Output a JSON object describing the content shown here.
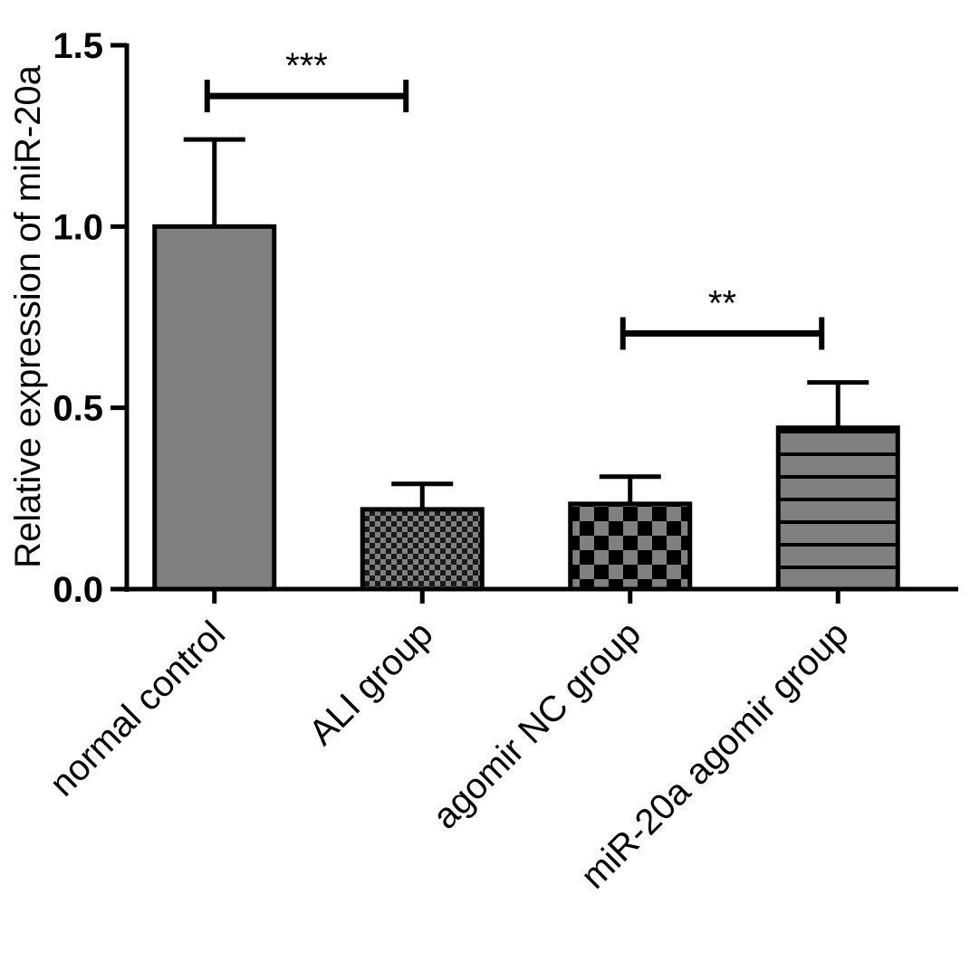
{
  "chart_data": {
    "type": "bar",
    "title": "",
    "xlabel": "",
    "ylabel": "Relative expression of miR-20a",
    "ylim": [
      0,
      1.5
    ],
    "yticks": [
      "0.0",
      "0.5",
      "1.0",
      "1.5"
    ],
    "grid": false,
    "categories": [
      "normal control",
      "ALI group",
      "agomir NC group",
      "miR-20a agomir group"
    ],
    "values": [
      1.0,
      0.22,
      0.235,
      0.445
    ],
    "error_upper": [
      0.24,
      0.07,
      0.075,
      0.125
    ],
    "fills": [
      "solid",
      "fine-checker",
      "coarse-checker",
      "horizontal-stripes"
    ],
    "bar_color": "#808080",
    "significance": [
      {
        "from": 0,
        "to": 1,
        "y": 1.36,
        "label": "***"
      },
      {
        "from": 2,
        "to": 3,
        "y": 0.705,
        "label": "**"
      }
    ]
  }
}
